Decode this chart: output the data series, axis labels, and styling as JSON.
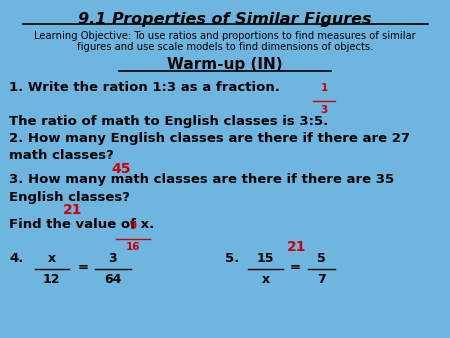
{
  "bg_color": "#6eb5e0",
  "title": "9.1 Properties of Similar Figures",
  "learning_obj_1": "Learning Objective: To use ratios and proportions to find measures of similar",
  "learning_obj_2": "figures and use scale models to find dimensions of objects.",
  "warmup": "Warm-up (IN)",
  "q1": "1. Write the ration 1:3 as a fraction.",
  "ans1_num": "1",
  "ans1_den": "3",
  "q2a": "The ratio of math to English classes is 3:5.",
  "q2b": "2. How many English classes are there if there are 27",
  "q2c": "math classes?",
  "ans2": "45",
  "q3a": "3. How many math classes are there if there are 35",
  "q3b": "English classes?",
  "ans3": "21",
  "q4_label": "Find the value of x.",
  "q4_ans_num": "9",
  "q4_ans_den": "16",
  "q4": "4.",
  "q4_frac_num": "x",
  "q4_frac_den": "12",
  "q4_eq": "=",
  "q4_frac2_num": "3",
  "q4_frac2_den": "64",
  "q5_label": "5.",
  "q5_frac_num": "15",
  "q5_frac_den": "x",
  "q5_eq": "=",
  "q5_frac2_num": "5",
  "q5_frac2_den": "7",
  "ans5": "21",
  "black": "#000000",
  "red": "#cc0000"
}
